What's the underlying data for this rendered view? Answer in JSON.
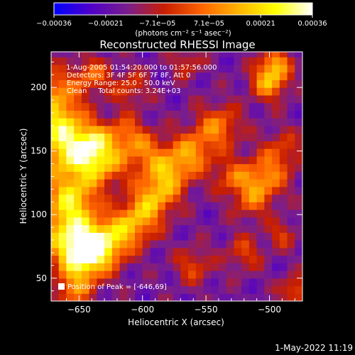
{
  "chart_data": {
    "type": "heatmap",
    "title": "Reconstructed RHESSI Image",
    "xlabel": "Heliocentric X (arcsec)",
    "ylabel": "Heliocentric Y (arcsec)",
    "xlim": [
      -672,
      -474
    ],
    "ylim": [
      32,
      228
    ],
    "x_ticks": [
      -650,
      -600,
      -550,
      -500
    ],
    "y_ticks": [
      50,
      100,
      150,
      200
    ],
    "x_tick_labels": [
      "−650",
      "−600",
      "−550",
      "−500"
    ],
    "y_tick_labels": [
      "50",
      "100",
      "150",
      "200"
    ],
    "colorbar": {
      "range": [
        -0.00036,
        0.00036
      ],
      "tick_labels": [
        "−0.00036",
        "−0.00021",
        "−7.1e−05",
        "7.1e−05",
        "0.00021",
        "0.00036"
      ],
      "unit_label": "(photons cm⁻² s⁻¹ asec⁻²)",
      "stops": [
        "#0000ff",
        "#5000c8",
        "#7a1e8c",
        "#c81e00",
        "#ff6400",
        "#ffb400",
        "#ffff00",
        "#ffffff"
      ]
    },
    "annotations": [
      " 1-Aug-2005 01:54:20.000 to 01:57:56.000",
      "Detectors: 3F 4F 5F 6F 7F 8F, Att 0",
      "Energy Range: 25.0 - 50.0 keV",
      "Clean     Total counts: 3.24E+03"
    ],
    "peak_label": "Position of Peak = [-646,69]",
    "peak": [
      -646,
      69
    ],
    "footer": "1-May-2022 11:19"
  }
}
